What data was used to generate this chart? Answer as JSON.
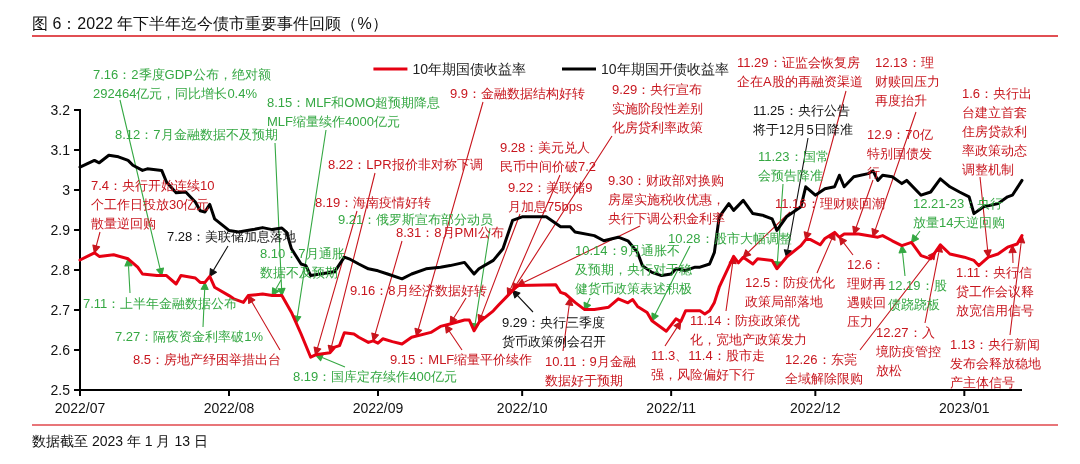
{
  "chart_data": {
    "type": "line",
    "title": "图 6：2022 年下半年迄今债市重要事件回顾（%）",
    "xlim": [
      "2022-07-01",
      "2023-01-13"
    ],
    "xticks": [
      {
        "value": "2022-07-01",
        "label": "2022/07"
      },
      {
        "value": "2022-08-01",
        "label": "2022/08"
      },
      {
        "value": "2022-09-01",
        "label": "2022/09"
      },
      {
        "value": "2022-10-01",
        "label": "2022/10"
      },
      {
        "value": "2022-11-01",
        "label": "2022/11"
      },
      {
        "value": "2022-12-01",
        "label": "2022/12"
      },
      {
        "value": "2023-01-01",
        "label": "2023/01"
      }
    ],
    "ylim": [
      2.5,
      3.2
    ],
    "yticks": [
      2.5,
      2.6,
      2.7,
      2.8,
      2.9,
      3,
      3.1,
      3.2
    ],
    "legend": "top",
    "series": [
      {
        "name": "10年期国债收益率",
        "color": "#e60012",
        "x": [
          "2022-07-01",
          "2022-07-04",
          "2022-07-05",
          "2022-07-08",
          "2022-07-11",
          "2022-07-13",
          "2022-07-14",
          "2022-07-17",
          "2022-07-19",
          "2022-07-21",
          "2022-07-22",
          "2022-07-25",
          "2022-07-26",
          "2022-07-27",
          "2022-07-28",
          "2022-07-29",
          "2022-08-01",
          "2022-08-02",
          "2022-08-04",
          "2022-08-05",
          "2022-08-08",
          "2022-08-10",
          "2022-08-12",
          "2022-08-14",
          "2022-08-16",
          "2022-08-18",
          "2022-08-19",
          "2022-08-22",
          "2022-08-23",
          "2022-08-24",
          "2022-08-25",
          "2022-08-27",
          "2022-08-28",
          "2022-08-30",
          "2022-08-31",
          "2022-09-01",
          "2022-09-02",
          "2022-09-04",
          "2022-09-06",
          "2022-09-08",
          "2022-09-12",
          "2022-09-14",
          "2022-09-16",
          "2022-09-19",
          "2022-09-20",
          "2022-09-21",
          "2022-09-22",
          "2022-09-25",
          "2022-09-26",
          "2022-09-28",
          "2022-09-30",
          "2022-10-03",
          "2022-10-08",
          "2022-10-09",
          "2022-10-10",
          "2022-10-12",
          "2022-10-14",
          "2022-10-16",
          "2022-10-19",
          "2022-10-21",
          "2022-10-23",
          "2022-10-24",
          "2022-10-25",
          "2022-10-27",
          "2022-10-28",
          "2022-10-31",
          "2022-11-02",
          "2022-11-03",
          "2022-11-04",
          "2022-11-07",
          "2022-11-08",
          "2022-11-09",
          "2022-11-10",
          "2022-11-11",
          "2022-11-14",
          "2022-11-15",
          "2022-11-16",
          "2022-11-18",
          "2022-11-19",
          "2022-11-22",
          "2022-11-23",
          "2022-11-25",
          "2022-11-28",
          "2022-11-29",
          "2022-11-30",
          "2022-12-02",
          "2022-12-03",
          "2022-12-05",
          "2022-12-06",
          "2022-12-07",
          "2022-12-10",
          "2022-12-14",
          "2022-12-15",
          "2022-12-17",
          "2022-12-19",
          "2022-12-21",
          "2022-12-23",
          "2022-12-25",
          "2022-12-27",
          "2022-12-29",
          "2023-01-01",
          "2023-01-03",
          "2023-01-04",
          "2023-01-06",
          "2023-01-08",
          "2023-01-10",
          "2023-01-12",
          "2023-01-13"
        ],
        "values": [
          2.825,
          2.843,
          2.834,
          2.838,
          2.828,
          2.807,
          2.79,
          2.786,
          2.786,
          2.765,
          2.786,
          2.78,
          2.769,
          2.769,
          2.784,
          2.757,
          2.736,
          2.728,
          2.719,
          2.736,
          2.74,
          2.736,
          2.736,
          2.694,
          2.64,
          2.582,
          2.588,
          2.593,
          2.607,
          2.611,
          2.643,
          2.64,
          2.632,
          2.619,
          2.623,
          2.617,
          2.628,
          2.621,
          2.615,
          2.632,
          2.644,
          2.659,
          2.665,
          2.675,
          2.675,
          2.648,
          2.669,
          2.698,
          2.711,
          2.736,
          2.761,
          2.762,
          2.763,
          2.744,
          2.74,
          2.719,
          2.701,
          2.701,
          2.707,
          2.728,
          2.718,
          2.726,
          2.709,
          2.694,
          2.673,
          2.647,
          2.678,
          2.671,
          2.698,
          2.698,
          2.69,
          2.698,
          2.719,
          2.757,
          2.834,
          2.818,
          2.832,
          2.815,
          2.828,
          2.824,
          2.803,
          2.832,
          2.861,
          2.876,
          2.876,
          2.863,
          2.879,
          2.894,
          2.882,
          2.89,
          2.89,
          2.882,
          2.886,
          2.873,
          2.861,
          2.869,
          2.836,
          2.828,
          2.863,
          2.84,
          2.832,
          2.824,
          2.811,
          2.832,
          2.84,
          2.857,
          2.865,
          2.886
        ]
      },
      {
        "name": "10年期国开债收益率",
        "color": "#000000",
        "x": [
          "2022-07-01",
          "2022-07-04",
          "2022-07-05",
          "2022-07-07",
          "2022-07-09",
          "2022-07-11",
          "2022-07-12",
          "2022-07-14",
          "2022-07-15",
          "2022-07-18",
          "2022-07-19",
          "2022-07-21",
          "2022-07-23",
          "2022-07-25",
          "2022-07-26",
          "2022-07-27",
          "2022-07-28",
          "2022-07-29",
          "2022-08-01",
          "2022-08-03",
          "2022-08-06",
          "2022-08-08",
          "2022-08-10",
          "2022-08-12",
          "2022-08-13",
          "2022-08-14",
          "2022-08-16",
          "2022-08-17",
          "2022-08-18",
          "2022-08-20",
          "2022-08-22",
          "2022-08-23",
          "2022-08-25",
          "2022-08-26",
          "2022-08-28",
          "2022-08-30",
          "2022-09-01",
          "2022-09-03",
          "2022-09-06",
          "2022-09-08",
          "2022-09-11",
          "2022-09-14",
          "2022-09-16",
          "2022-09-19",
          "2022-09-21",
          "2022-09-22",
          "2022-09-25",
          "2022-09-27",
          "2022-09-29",
          "2022-10-01",
          "2022-10-06",
          "2022-10-09",
          "2022-10-11",
          "2022-10-12",
          "2022-10-16",
          "2022-10-18",
          "2022-10-21",
          "2022-10-23",
          "2022-10-25",
          "2022-10-26",
          "2022-10-28",
          "2022-10-30",
          "2022-11-01",
          "2022-11-02",
          "2022-11-04",
          "2022-11-06",
          "2022-11-07",
          "2022-11-09",
          "2022-11-10",
          "2022-11-11",
          "2022-11-13",
          "2022-11-14",
          "2022-11-16",
          "2022-11-18",
          "2022-11-20",
          "2022-11-22",
          "2022-11-23",
          "2022-11-25",
          "2022-11-28",
          "2022-11-29",
          "2022-12-01",
          "2022-12-03",
          "2022-12-05",
          "2022-12-06",
          "2022-12-07",
          "2022-12-09",
          "2022-12-12",
          "2022-12-13",
          "2022-12-14",
          "2022-12-15",
          "2022-12-17",
          "2022-12-19",
          "2022-12-20",
          "2022-12-23",
          "2022-12-25",
          "2022-12-27",
          "2022-12-29",
          "2022-12-31",
          "2023-01-02",
          "2023-01-03",
          "2023-01-05",
          "2023-01-08",
          "2023-01-10",
          "2023-01-11",
          "2023-01-13"
        ],
        "values": [
          3.057,
          3.074,
          3.068,
          3.087,
          3.083,
          3.074,
          3.062,
          3.049,
          3.053,
          3.049,
          3.02,
          2.993,
          2.995,
          2.97,
          2.948,
          2.945,
          2.964,
          2.928,
          2.899,
          2.895,
          2.901,
          2.906,
          2.901,
          2.905,
          2.894,
          2.853,
          2.815,
          2.811,
          2.786,
          2.79,
          2.794,
          2.796,
          2.832,
          2.828,
          2.815,
          2.803,
          2.798,
          2.79,
          2.778,
          2.79,
          2.803,
          2.807,
          2.811,
          2.819,
          2.79,
          2.803,
          2.824,
          2.853,
          2.924,
          2.933,
          2.933,
          2.908,
          2.908,
          2.895,
          2.886,
          2.873,
          2.882,
          2.873,
          2.844,
          2.811,
          2.794,
          2.786,
          2.79,
          2.803,
          2.799,
          2.807,
          2.807,
          2.815,
          2.844,
          2.933,
          2.966,
          2.949,
          2.974,
          2.941,
          2.937,
          2.928,
          2.899,
          2.933,
          2.958,
          3.008,
          2.987,
          3.003,
          3.008,
          3.037,
          3.008,
          3.033,
          3.041,
          3.048,
          3.024,
          3.037,
          3.033,
          3.016,
          3.024,
          2.987,
          2.995,
          3.028,
          3.008,
          2.995,
          2.983,
          2.941,
          2.958,
          2.966,
          2.983,
          2.987,
          3.024
        ]
      }
    ],
    "annotations": [
      {
        "text": "7.16：2季度GDP公布，绝对额292464亿元，同比增长0.4%",
        "x": "2022-07-18",
        "y": 2.786
      },
      {
        "text": "7.4：央行开始连续10个工作日投放30亿元散量逆回购",
        "x": "2022-07-04",
        "y": 2.843
      },
      {
        "text": "7.11：上半年金融数据公布",
        "x": "2022-07-11",
        "y": 2.828
      },
      {
        "text": "7.27：隔夜资金利率破1%",
        "x": "2022-07-27",
        "y": 2.769
      },
      {
        "text": "7.28：美联储加息落地",
        "x": "2022-07-28",
        "y": 2.784
      },
      {
        "text": "8.5：房地产纾困举措出台",
        "x": "2022-08-05",
        "y": 2.736
      },
      {
        "text": "8.10：7月通胀数据不及预期",
        "x": "2022-08-10",
        "y": 2.736
      },
      {
        "text": "8.12：7月金融数据不及预期",
        "x": "2022-08-12",
        "y": 2.736
      },
      {
        "text": "8.15：MLF和OMO超预期降息MLF缩量续作4000亿元",
        "x": "2022-08-15",
        "y": 2.667
      },
      {
        "text": "8.22：LPR报价非对称下调",
        "x": "2022-08-22",
        "y": 2.593
      },
      {
        "text": "8.19：海南疫情好转",
        "x": "2022-08-19",
        "y": 2.588
      },
      {
        "text": "9.21：俄罗斯宣布部分动员",
        "x": "2022-09-21",
        "y": 2.648
      },
      {
        "text": "8.19：国库定存续作400亿元",
        "x": "2022-08-19",
        "y": 2.588
      },
      {
        "text": "8.31：8月PMI公布",
        "x": "2022-08-31",
        "y": 2.623
      },
      {
        "text": "9.16：8月经济数据好转",
        "x": "2022-09-16",
        "y": 2.665
      },
      {
        "text": "9.15：MLF缩量平价续作",
        "x": "2022-09-15",
        "y": 2.662
      },
      {
        "text": "9.9：金融数据结构好转",
        "x": "2022-09-09",
        "y": 2.635
      },
      {
        "text": "9.28：美元兑人民币中间价破7.2",
        "x": "2022-09-28",
        "y": 2.736
      },
      {
        "text": "9.22：美联储9月加息75bps",
        "x": "2022-09-22",
        "y": 2.669
      },
      {
        "text": "9.29：央行宣布实施阶段性差别化房贷利率政策",
        "x": "2022-09-29",
        "y": 2.749
      },
      {
        "text": "9.30：财政部对换购房屋实施税收优惠，央行下调公积金利率",
        "x": "2022-09-30",
        "y": 2.761
      },
      {
        "text": "9.29：央行三季度货币政策例会召开",
        "x": "2022-09-29",
        "y": 2.749
      },
      {
        "text": "10.11：9月金融数据好于预期",
        "x": "2022-10-11",
        "y": 2.73
      },
      {
        "text": "10.14：9月通胀不及预期，央行对于稳健货币政策表述积极",
        "x": "2022-10-14",
        "y": 2.701
      },
      {
        "text": "10.28：股市大幅调整",
        "x": "2022-10-28",
        "y": 2.673
      },
      {
        "text": "11.3、11.4：股市走强，风险偏好下行",
        "x": "2022-11-03",
        "y": 2.671
      },
      {
        "text": "11.14：防疫政策优化，宽地产政策发力",
        "x": "2022-11-14",
        "y": 2.834
      },
      {
        "text": "11.16：理财赎回潮",
        "x": "2022-11-16",
        "y": 2.832
      },
      {
        "text": "11.23：国常会预告降准",
        "x": "2022-11-23",
        "y": 2.803
      },
      {
        "text": "11.25：央行公告将于12月5日降准",
        "x": "2022-11-25",
        "y": 2.832
      },
      {
        "text": "11.29：证监会恢复房企在A股的再融资渠道",
        "x": "2022-11-29",
        "y": 2.876
      },
      {
        "text": "12.5：防疫优化政策局部落地",
        "x": "2022-12-05",
        "y": 2.894
      },
      {
        "text": "12.6：理财再遇赎回压力",
        "x": "2022-12-06",
        "y": 2.882
      },
      {
        "text": "12.9：70亿特别国债发行",
        "x": "2022-12-09",
        "y": 2.89
      },
      {
        "text": "12.13：理财赎回压力再度抬升",
        "x": "2022-12-13",
        "y": 2.884
      },
      {
        "text": "12.19：股债跷跷板",
        "x": "2022-12-19",
        "y": 2.861
      },
      {
        "text": "12.21-23：央行放量14天逆回购",
        "x": "2022-12-21",
        "y": 2.869
      },
      {
        "text": "12.26：东莞全域解除限购",
        "x": "2022-12-26",
        "y": 2.845
      },
      {
        "text": "12.27：入境防疫管控放松",
        "x": "2022-12-27",
        "y": 2.863
      },
      {
        "text": "1.6：央行出台建立首套住房贷款利率政策动态调整机制",
        "x": "2023-01-06",
        "y": 2.832
      },
      {
        "text": "1.11：央行信贷工作会议释放宽信用信号",
        "x": "2023-01-11",
        "y": 2.861
      },
      {
        "text": "1.13：央行新闻发布会释放稳地产主体信号",
        "x": "2023-01-13",
        "y": 2.886
      },
      "数据截至 2023 年 1 月 13 日"
    ]
  }
}
